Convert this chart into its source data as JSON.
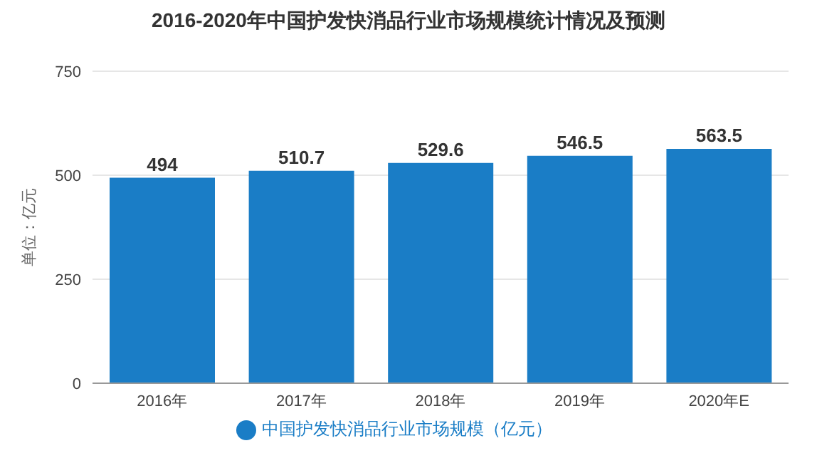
{
  "chart_data": {
    "type": "bar",
    "title": "2016-2020年中国护发快消品行业市场规模统计情况及预测",
    "ylabel": "单位：亿元",
    "categories": [
      "2016年",
      "2017年",
      "2018年",
      "2019年",
      "2020年E"
    ],
    "series": [
      {
        "name": "中国护发快消品行业市场规模（亿元）",
        "color": "#1a7dc6",
        "values": [
          494,
          510.7,
          529.6,
          546.5,
          563.5
        ]
      }
    ],
    "ylim": [
      0,
      750
    ],
    "yticks": [
      0,
      250,
      500,
      750
    ],
    "grid": "y",
    "legend": "bottom",
    "data_labels": true
  }
}
